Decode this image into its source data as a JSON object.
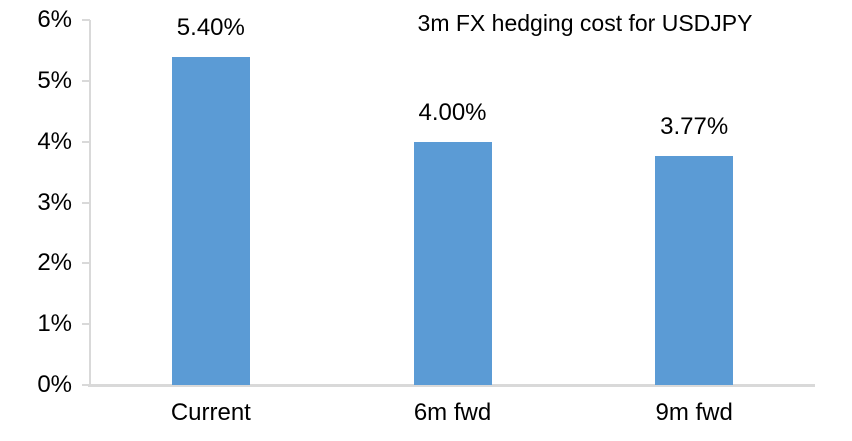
{
  "chart_data": {
    "type": "bar",
    "title": "3m FX hedging cost for USDJPY",
    "categories": [
      "Current",
      "6m fwd",
      "9m fwd"
    ],
    "values": [
      5.4,
      4.0,
      3.77
    ],
    "data_labels": [
      "5.40%",
      "4.00%",
      "3.77%"
    ],
    "xlabel": "",
    "ylabel": "",
    "ylim": [
      0,
      6
    ],
    "ytick_step": 1,
    "ytick_labels": [
      "0%",
      "1%",
      "2%",
      "3%",
      "4%",
      "5%",
      "6%"
    ],
    "grid": false,
    "legend": null,
    "colors": {
      "bar_fill": "#5b9bd5",
      "axis_line": "#d9d9d9",
      "text": "#000000",
      "background": "#ffffff"
    }
  }
}
